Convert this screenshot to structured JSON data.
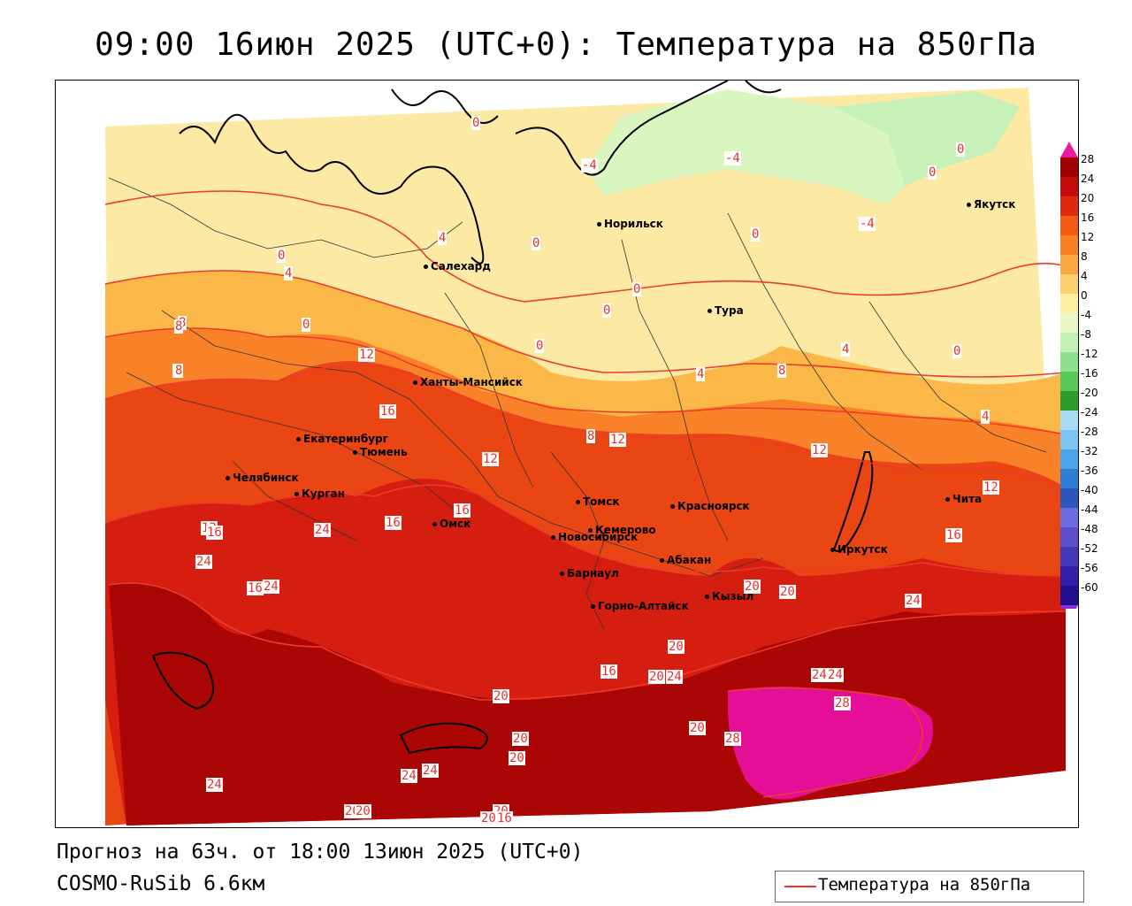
{
  "title": "09:00 16июн 2025 (UTC+0): Температура на 850гПа",
  "footer": {
    "forecast": "Прогноз на 63ч. от 18:00 13июн 2025 (UTC+0)",
    "model": "COSMO-RuSib 6.6км"
  },
  "legend": {
    "label": "Температура на 850гПа",
    "line_color": "#e8312a"
  },
  "colorbar": {
    "ticks": [
      "28",
      "24",
      "20",
      "16",
      "12",
      "8",
      "4",
      "0",
      "-4",
      "-8",
      "-12",
      "-16",
      "-20",
      "-24",
      "-28",
      "-32",
      "-36",
      "-40",
      "-44",
      "-48",
      "-52",
      "-56",
      "-60"
    ],
    "colors": [
      "#a00000",
      "#c40c0c",
      "#e02a10",
      "#f45a10",
      "#f87f20",
      "#fba640",
      "#fcd070",
      "#fdeeA0",
      "#eaf7c4",
      "#c4f0b4",
      "#8ee08c",
      "#58c858",
      "#2c9c2c",
      "#a8dcf4",
      "#7cc4ef",
      "#4ea4e8",
      "#2f7cd4",
      "#2a58bc",
      "#6c6ce0",
      "#5c50cc",
      "#4438b8",
      "#3020a8",
      "#201090"
    ]
  },
  "cities": [
    {
      "name": "Норильск"
    },
    {
      "name": "Якутск"
    },
    {
      "name": "Салехард"
    },
    {
      "name": "Тура"
    },
    {
      "name": "Ханты-Мансийск"
    },
    {
      "name": "Екатеринбург"
    },
    {
      "name": "Тюмень"
    },
    {
      "name": "Челябинск"
    },
    {
      "name": "Курган"
    },
    {
      "name": "Омск"
    },
    {
      "name": "Новосибирск"
    },
    {
      "name": "Томск"
    },
    {
      "name": "Красноярск"
    },
    {
      "name": "Кемерово"
    },
    {
      "name": "Абакан"
    },
    {
      "name": "Барнаул"
    },
    {
      "name": "Горно-Алтайск"
    },
    {
      "name": "Кызыл"
    },
    {
      "name": "Иркутск"
    },
    {
      "name": "Чита"
    }
  ],
  "contour_labels": [
    "0",
    "-4",
    "-4",
    "0",
    "0",
    "-4",
    "0",
    "4",
    "0",
    "4",
    "0",
    "0",
    "0",
    "0",
    "8",
    "0",
    "4",
    "0",
    "4",
    "8",
    "12",
    "16",
    "12",
    "8",
    "12",
    "4",
    "8",
    "12",
    "12",
    "16",
    "12",
    "16",
    "16",
    "16",
    "20",
    "20",
    "24",
    "24",
    "16",
    "16",
    "20",
    "24",
    "20",
    "20",
    "20",
    "24",
    "24",
    "28",
    "28",
    "20",
    "24",
    "24",
    "24",
    "20",
    "24",
    "20",
    "20",
    "24",
    "20",
    "20",
    "16",
    "8",
    "8"
  ]
}
